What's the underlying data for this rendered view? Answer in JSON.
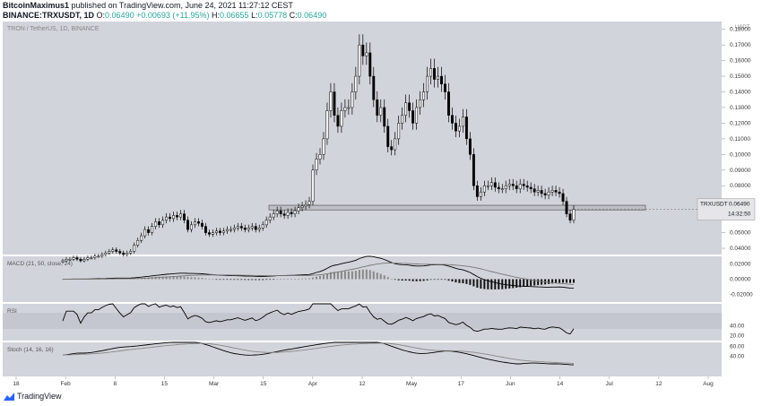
{
  "header": {
    "author": "BitcoinMaximus1",
    "published_text": "published on TradingView.com, June 24, 2021 11:27:12 CEST",
    "symbol_line": "BINANCE:TRXUSDT, 1D",
    "open": "0.06490",
    "change": "+0.00693 (+11.95%)",
    "high": "0.06655",
    "low": "0.05778",
    "close": "0.06490"
  },
  "brand": {
    "name": "TradingView"
  },
  "colors": {
    "pane_bg": "#d2d4dc",
    "axis_bg": "#ffffff",
    "candle": "#000000",
    "accent_teal": "#26a69a",
    "price_box_bg": "#e6e6ea"
  },
  "chart_data": [
    {
      "type": "candlestick",
      "title": "TRON / TetherUS, 1D, BINANCE",
      "x_axis_labels": [
        "18",
        "Feb",
        "8",
        "15",
        "Mar",
        "15",
        "Apr",
        "12",
        "May",
        "17",
        "Jun",
        "14",
        "Jul",
        "12",
        "Aug"
      ],
      "y_axis_unit": "USDT",
      "y_tick_labels": [
        "0.18000",
        "0.17000",
        "0.16000",
        "0.15000",
        "0.14000",
        "0.13000",
        "0.12000",
        "0.11000",
        "0.10000",
        "0.09000",
        "0.08000",
        "0.07000",
        "0.06000",
        "0.05000",
        "0.04000"
      ],
      "ylim": [
        0.036,
        0.185
      ],
      "last_price_label": {
        "symbol": "TRXUSDT",
        "price": "0.06490",
        "countdown": "14:32:50"
      },
      "support_zone": [
        0.0645,
        0.0675
      ],
      "closes": [
        0.032,
        0.033,
        0.033,
        0.034,
        0.033,
        0.032,
        0.033,
        0.034,
        0.034,
        0.035,
        0.035,
        0.036,
        0.037,
        0.038,
        0.039,
        0.038,
        0.037,
        0.036,
        0.037,
        0.038,
        0.042,
        0.045,
        0.048,
        0.052,
        0.05,
        0.054,
        0.057,
        0.055,
        0.058,
        0.06,
        0.059,
        0.061,
        0.06,
        0.062,
        0.058,
        0.052,
        0.055,
        0.057,
        0.056,
        0.054,
        0.05,
        0.049,
        0.05,
        0.051,
        0.05,
        0.051,
        0.052,
        0.052,
        0.053,
        0.054,
        0.053,
        0.052,
        0.053,
        0.054,
        0.052,
        0.053,
        0.055,
        0.058,
        0.06,
        0.062,
        0.064,
        0.062,
        0.061,
        0.063,
        0.062,
        0.064,
        0.066,
        0.067,
        0.068,
        0.07,
        0.09,
        0.097,
        0.1,
        0.11,
        0.128,
        0.14,
        0.125,
        0.118,
        0.128,
        0.13,
        0.13,
        0.14,
        0.15,
        0.17,
        0.163,
        0.165,
        0.15,
        0.135,
        0.125,
        0.13,
        0.118,
        0.105,
        0.103,
        0.11,
        0.12,
        0.125,
        0.133,
        0.128,
        0.12,
        0.13,
        0.135,
        0.14,
        0.15,
        0.155,
        0.148,
        0.15,
        0.145,
        0.14,
        0.125,
        0.12,
        0.115,
        0.118,
        0.124,
        0.11,
        0.1,
        0.08,
        0.073,
        0.076,
        0.08,
        0.08,
        0.082,
        0.079,
        0.078,
        0.078,
        0.08,
        0.081,
        0.08,
        0.078,
        0.081,
        0.08,
        0.079,
        0.078,
        0.076,
        0.077,
        0.075,
        0.074,
        0.076,
        0.077,
        0.076,
        0.075,
        0.07,
        0.062,
        0.058,
        0.0649
      ],
      "indicators": [
        {
          "name": "MACD (21, 50, close, 24)",
          "tick_labels": [
            "0.02000",
            "0.00000",
            "-0.02000"
          ],
          "ylim": [
            -0.03,
            0.03
          ]
        },
        {
          "name": "RSI",
          "tick_labels": [
            "40.00",
            "20.00"
          ],
          "ylim": [
            10,
            85
          ]
        },
        {
          "name": "Stoch (14, 16, 16)",
          "tick_labels": [
            "60.00",
            "40.00"
          ],
          "ylim": [
            0,
            68
          ]
        }
      ]
    }
  ]
}
